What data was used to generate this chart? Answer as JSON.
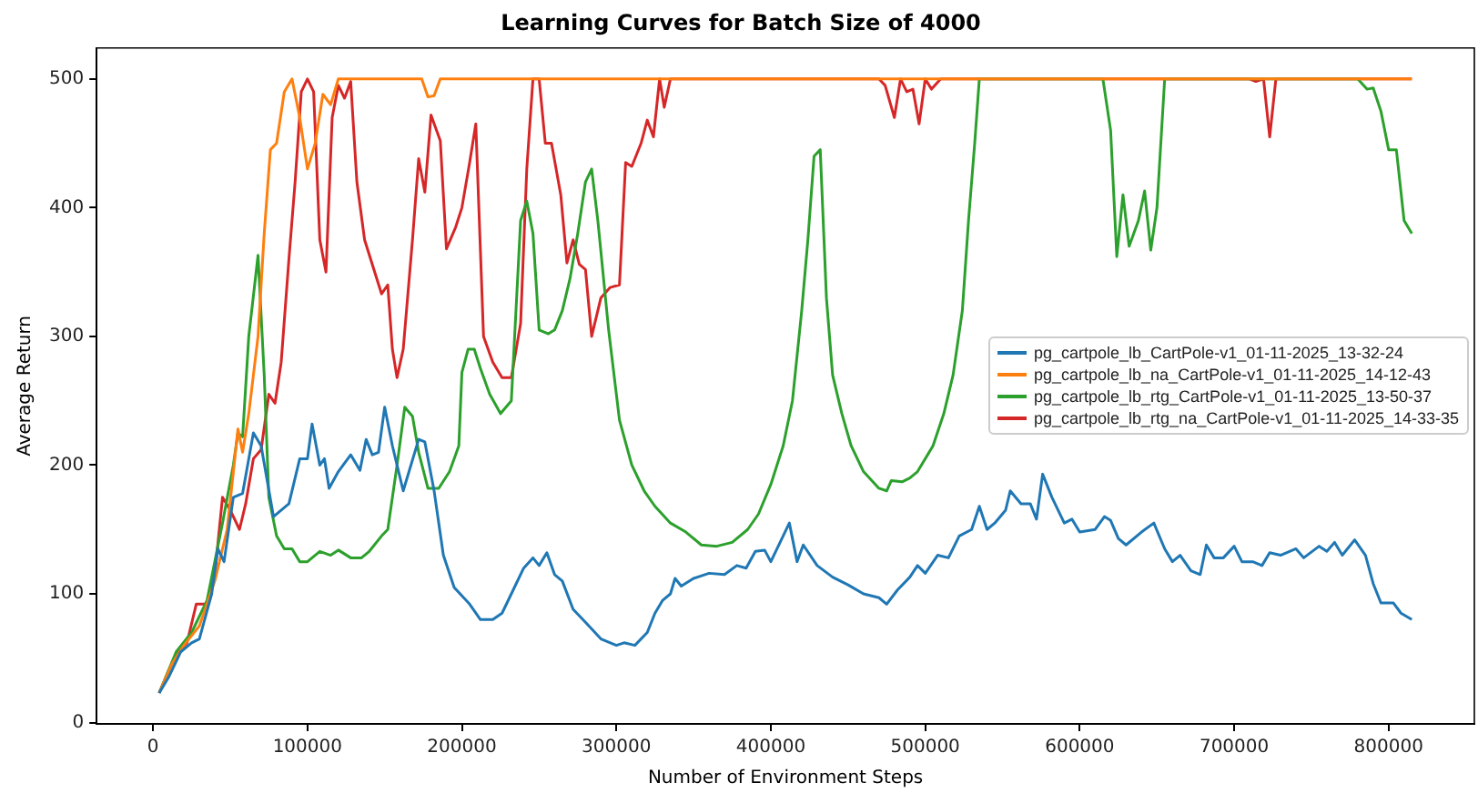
{
  "chart_data": {
    "type": "line",
    "title": "Learning Curves for Batch Size of 4000",
    "xlabel": "Number of Environment Steps",
    "ylabel": "Average Return",
    "xlim": [
      -36500,
      855500
    ],
    "ylim": [
      -1,
      524
    ],
    "xticks": [
      0,
      100000,
      200000,
      300000,
      400000,
      500000,
      600000,
      700000,
      800000
    ],
    "yticks": [
      0,
      100,
      200,
      300,
      400,
      500
    ],
    "grid": false,
    "legend": "right",
    "marker": "none",
    "line_style": "solid",
    "series": [
      {
        "name": "pg_cartpole_lb_CartPole-v1_01-11-2025_13-32-24",
        "color": "#1f77b4",
        "x": [
          4000,
          10000,
          18000,
          25000,
          30000,
          38000,
          42000,
          46000,
          52000,
          58000,
          65000,
          70000,
          78000,
          88000,
          95000,
          100000,
          103000,
          108000,
          111000,
          114000,
          120000,
          128000,
          134000,
          138000,
          142000,
          146000,
          150000,
          155000,
          162000,
          172000,
          176000,
          182000,
          188000,
          195000,
          205000,
          212000,
          220000,
          226000,
          232000,
          240000,
          246000,
          250000,
          255000,
          260000,
          265000,
          272000,
          280000,
          290000,
          300000,
          305000,
          312000,
          320000,
          325000,
          330000,
          335000,
          338000,
          342000,
          350000,
          360000,
          370000,
          378000,
          384000,
          390000,
          396000,
          400000,
          406000,
          412000,
          417000,
          421000,
          430000,
          440000,
          450000,
          460000,
          470000,
          475000,
          482000,
          490000,
          495000,
          500000,
          508000,
          515000,
          522000,
          530000,
          535000,
          540000,
          545000,
          552000,
          555000,
          562000,
          568000,
          572000,
          576000,
          582000,
          590000,
          595000,
          600000,
          610000,
          616000,
          620000,
          625000,
          630000,
          640000,
          648000,
          655000,
          660000,
          665000,
          672000,
          678000,
          682000,
          687000,
          693000,
          700000,
          705000,
          712000,
          718000,
          723000,
          730000,
          740000,
          745000,
          755000,
          760000,
          765000,
          770000,
          778000,
          785000,
          790000,
          795000,
          803000,
          808000,
          815000
        ],
        "values": [
          23,
          35,
          55,
          62,
          65,
          100,
          135,
          125,
          175,
          178,
          225,
          215,
          160,
          170,
          205,
          205,
          232,
          200,
          205,
          182,
          195,
          208,
          196,
          220,
          208,
          210,
          245,
          215,
          180,
          220,
          218,
          180,
          130,
          105,
          92,
          80,
          80,
          85,
          100,
          120,
          128,
          122,
          132,
          115,
          110,
          88,
          78,
          65,
          60,
          62,
          60,
          70,
          85,
          95,
          100,
          112,
          106,
          112,
          116,
          115,
          122,
          120,
          133,
          134,
          125,
          140,
          155,
          125,
          138,
          122,
          113,
          107,
          100,
          97,
          92,
          103,
          113,
          122,
          116,
          130,
          128,
          145,
          150,
          168,
          150,
          155,
          165,
          180,
          170,
          170,
          158,
          193,
          175,
          155,
          158,
          148,
          150,
          160,
          157,
          143,
          138,
          148,
          155,
          135,
          125,
          130,
          118,
          115,
          138,
          128,
          128,
          137,
          125,
          125,
          122,
          132,
          130,
          135,
          128,
          137,
          133,
          140,
          130,
          142,
          130,
          108,
          93,
          93,
          85,
          80
        ]
      },
      {
        "name": "pg_cartpole_lb_na_CartPole-v1_01-11-2025_14-12-43",
        "color": "#ff7f0e",
        "x": [
          4000,
          12000,
          20000,
          30000,
          40000,
          48000,
          55000,
          58000,
          62000,
          68000,
          72000,
          76000,
          80000,
          85000,
          90000,
          95000,
          100000,
          105000,
          110000,
          115000,
          120000,
          174000,
          178000,
          182000,
          186000,
          815000
        ],
        "values": [
          23,
          45,
          60,
          75,
          110,
          150,
          228,
          210,
          240,
          300,
          380,
          445,
          450,
          490,
          500,
          470,
          430,
          450,
          488,
          480,
          500,
          500,
          486,
          487,
          500,
          500
        ]
      },
      {
        "name": "pg_cartpole_lb_rtg_CartPole-v1_01-11-2025_13-50-37",
        "color": "#2ca02c",
        "x": [
          4000,
          15000,
          25000,
          35000,
          45000,
          52000,
          55000,
          58000,
          62000,
          68000,
          72000,
          75000,
          80000,
          85000,
          90000,
          95000,
          100000,
          108000,
          115000,
          120000,
          128000,
          135000,
          140000,
          148000,
          152000,
          158000,
          163000,
          168000,
          172000,
          178000,
          185000,
          192000,
          198000,
          200000,
          204000,
          208000,
          212000,
          218000,
          225000,
          232000,
          238000,
          242000,
          246000,
          250000,
          256000,
          260000,
          265000,
          270000,
          275000,
          280000,
          284000,
          288000,
          295000,
          302000,
          310000,
          318000,
          325000,
          335000,
          345000,
          355000,
          365000,
          375000,
          385000,
          392000,
          400000,
          408000,
          414000,
          420000,
          424000,
          428000,
          432000,
          436000,
          440000,
          446000,
          452000,
          460000,
          470000,
          475000,
          478000,
          485000,
          490000,
          495000,
          505000,
          512000,
          518000,
          524000,
          528000,
          532000,
          535000,
          615000,
          620000,
          624000,
          628000,
          632000,
          638000,
          642000,
          646000,
          650000,
          655000,
          780000,
          786000,
          790000,
          795000,
          800000,
          805000,
          810000,
          815000
        ],
        "values": [
          23,
          55,
          70,
          95,
          155,
          200,
          225,
          222,
          300,
          363,
          270,
          175,
          145,
          135,
          135,
          125,
          125,
          133,
          130,
          134,
          128,
          128,
          133,
          145,
          150,
          200,
          245,
          238,
          210,
          182,
          182,
          195,
          215,
          272,
          290,
          290,
          275,
          255,
          240,
          250,
          390,
          405,
          380,
          305,
          302,
          305,
          320,
          345,
          380,
          420,
          430,
          390,
          305,
          235,
          200,
          180,
          168,
          155,
          148,
          138,
          137,
          140,
          150,
          162,
          185,
          215,
          250,
          320,
          375,
          440,
          445,
          330,
          270,
          240,
          215,
          195,
          182,
          180,
          188,
          187,
          190,
          195,
          215,
          240,
          270,
          320,
          390,
          450,
          500,
          500,
          460,
          362,
          410,
          370,
          390,
          413,
          367,
          400,
          500,
          500,
          492,
          493,
          475,
          445,
          445,
          390,
          380
        ]
      },
      {
        "name": "pg_cartpole_lb_rtg_na_CartPole-v1_01-11-2025_14-33-35",
        "color": "#d62728",
        "x": [
          4000,
          10000,
          16000,
          22000,
          28000,
          35000,
          40000,
          45000,
          50000,
          56000,
          60000,
          65000,
          70000,
          75000,
          79000,
          83000,
          88000,
          92000,
          96000,
          100000,
          104000,
          108000,
          112000,
          116000,
          120000,
          124000,
          128000,
          132000,
          137000,
          143000,
          148000,
          152000,
          155000,
          158000,
          162000,
          168000,
          172000,
          176000,
          180000,
          186000,
          190000,
          196000,
          200000,
          205000,
          209000,
          214000,
          220000,
          226000,
          232000,
          238000,
          242000,
          246000,
          250000,
          254000,
          258000,
          264000,
          268000,
          272000,
          276000,
          280000,
          284000,
          290000,
          296000,
          302000,
          306000,
          310000,
          316000,
          320000,
          324000,
          328000,
          331000,
          335000,
          470000,
          474000,
          480000,
          484000,
          488000,
          492000,
          496000,
          500000,
          504000,
          510000,
          710000,
          714000,
          719000,
          723000,
          727000,
          815000
        ],
        "values": [
          23,
          40,
          55,
          62,
          92,
          92,
          115,
          175,
          165,
          150,
          170,
          205,
          212,
          255,
          248,
          280,
          360,
          420,
          490,
          500,
          490,
          375,
          350,
          470,
          495,
          485,
          498,
          420,
          375,
          352,
          333,
          340,
          290,
          268,
          290,
          375,
          438,
          412,
          472,
          452,
          368,
          385,
          400,
          435,
          465,
          300,
          280,
          268,
          268,
          310,
          430,
          500,
          500,
          450,
          450,
          410,
          357,
          375,
          356,
          352,
          300,
          330,
          338,
          340,
          435,
          432,
          450,
          468,
          455,
          500,
          478,
          500,
          500,
          495,
          470,
          500,
          490,
          492,
          465,
          500,
          492,
          500,
          500,
          498,
          500,
          455,
          500,
          500
        ]
      }
    ]
  }
}
